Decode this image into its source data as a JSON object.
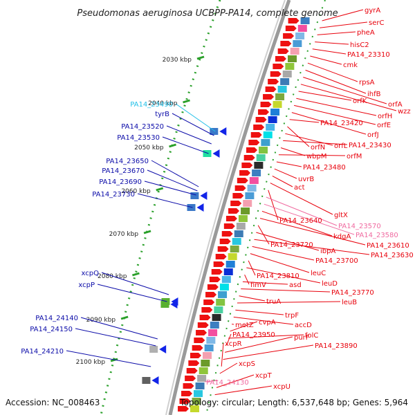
{
  "title": "Pseudomonas aeruginosa UCBPP-PA14, complete genome",
  "footer": {
    "accession": "Accession: NC_008463",
    "topology": "Topology: circular; Length: 6,537,648 bp; Genes: 5,964"
  },
  "colors": {
    "right_label": "#e8000b",
    "left_label": "#0a0aa8",
    "pink_label": "#f06aa0",
    "cyan_label": "#22c0e8",
    "backbone": "#9a9a9a",
    "tick": "#2aa02a"
  },
  "scale": {
    "labels": [
      "2030 kbp",
      "2040 kbp",
      "2050 kbp",
      "2060 kbp",
      "2070 kbp",
      "2080 kbp",
      "2090 kbp",
      "2100 kbp"
    ]
  },
  "right_labels": [
    {
      "text": "gyrA",
      "color": "red"
    },
    {
      "text": "serC",
      "color": "red"
    },
    {
      "text": "pheA",
      "color": "red"
    },
    {
      "text": "hisC2",
      "color": "red"
    },
    {
      "text": "PA14_23310",
      "color": "red"
    },
    {
      "text": "cmk",
      "color": "red"
    },
    {
      "text": "rpsA",
      "color": "red"
    },
    {
      "text": "ihfB",
      "color": "red"
    },
    {
      "text": "orfA",
      "color": "red"
    },
    {
      "text": "wzz",
      "color": "red"
    },
    {
      "text": "orfK",
      "color": "red"
    },
    {
      "text": "orfH",
      "color": "red"
    },
    {
      "text": "orfE",
      "color": "red"
    },
    {
      "text": "orfJ",
      "color": "red"
    },
    {
      "text": "PA14_23420",
      "color": "red"
    },
    {
      "text": "orfN",
      "color": "red"
    },
    {
      "text": "orfL",
      "color": "red"
    },
    {
      "text": "PA14_23430",
      "color": "red"
    },
    {
      "text": "wbpM",
      "color": "red"
    },
    {
      "text": "orfM",
      "color": "red"
    },
    {
      "text": "PA14_23480",
      "color": "red"
    },
    {
      "text": "uvrB",
      "color": "red"
    },
    {
      "text": "act",
      "color": "red"
    },
    {
      "text": "gltX",
      "color": "red"
    },
    {
      "text": "PA14_23640",
      "color": "red"
    },
    {
      "text": "PA14_23570",
      "color": "pink"
    },
    {
      "text": "PA14_23580",
      "color": "pink"
    },
    {
      "text": "kdgA",
      "color": "red"
    },
    {
      "text": "PA14_23610",
      "color": "red"
    },
    {
      "text": "PA14_23720",
      "color": "red"
    },
    {
      "text": "ibpA",
      "color": "red"
    },
    {
      "text": "PA14_23630",
      "color": "red"
    },
    {
      "text": "PA14_23700",
      "color": "red"
    },
    {
      "text": "leuC",
      "color": "red"
    },
    {
      "text": "PA14_23810",
      "color": "red"
    },
    {
      "text": "leuD",
      "color": "red"
    },
    {
      "text": "fimV",
      "color": "red"
    },
    {
      "text": "asd",
      "color": "red"
    },
    {
      "text": "PA14_23770",
      "color": "red"
    },
    {
      "text": "truA",
      "color": "red"
    },
    {
      "text": "leuB",
      "color": "red"
    },
    {
      "text": "trpF",
      "color": "red"
    },
    {
      "text": "accD",
      "color": "red"
    },
    {
      "text": "metZ",
      "color": "red"
    },
    {
      "text": "cvpA",
      "color": "red"
    },
    {
      "text": "folC",
      "color": "red"
    },
    {
      "text": "PA14_23950",
      "color": "red"
    },
    {
      "text": "purF",
      "color": "red"
    },
    {
      "text": "PA14_23890",
      "color": "red"
    },
    {
      "text": "xcpR",
      "color": "red"
    },
    {
      "text": "xcpS",
      "color": "red"
    },
    {
      "text": "PA14_24130",
      "color": "pink"
    },
    {
      "text": "xcpT",
      "color": "red"
    },
    {
      "text": "xcpU",
      "color": "red"
    }
  ],
  "left_labels": [
    {
      "text": "PA14_23490",
      "color": "cyan"
    },
    {
      "text": "tyrB",
      "color": "blue"
    },
    {
      "text": "PA14_23520",
      "color": "blue"
    },
    {
      "text": "PA14_23530",
      "color": "blue"
    },
    {
      "text": "PA14_23650",
      "color": "blue"
    },
    {
      "text": "PA14_23670",
      "color": "blue"
    },
    {
      "text": "PA14_23690",
      "color": "blue"
    },
    {
      "text": "PA14_23730",
      "color": "blue"
    },
    {
      "text": "xcpQ",
      "color": "blue"
    },
    {
      "text": "xcpP",
      "color": "blue"
    },
    {
      "text": "PA14_24140",
      "color": "blue"
    },
    {
      "text": "PA14_24150",
      "color": "blue"
    },
    {
      "text": "PA14_24210",
      "color": "blue"
    }
  ]
}
